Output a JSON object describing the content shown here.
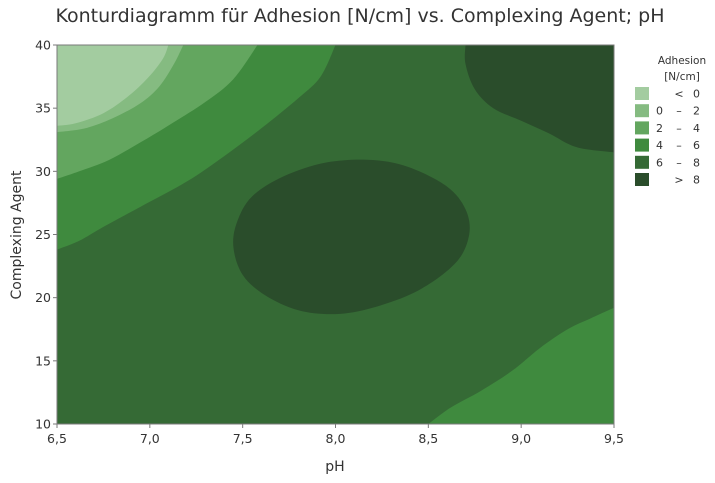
{
  "chart_data": {
    "type": "contour",
    "title": "Konturdiagramm für Adhesion [N/cm] vs. Complexing Agent; pH",
    "xlabel": "pH",
    "ylabel": "Complexing Agent",
    "xlim": [
      6.5,
      9.5
    ],
    "ylim": [
      10,
      40
    ],
    "xticks": [
      "6,5",
      "7,0",
      "7,5",
      "8,0",
      "8,5",
      "9,0",
      "9,5"
    ],
    "yticks": [
      "10",
      "15",
      "20",
      "25",
      "30",
      "35",
      "40"
    ],
    "xtick_values": [
      6.5,
      7.0,
      7.5,
      8.0,
      8.5,
      9.0,
      9.5
    ],
    "ytick_values": [
      10,
      15,
      20,
      25,
      30,
      35,
      40
    ],
    "legend": {
      "title_line1": "Adhesion",
      "title_line2": "[N/cm]",
      "placement": "right",
      "levels": [
        {
          "op": "<",
          "lo": "",
          "hi": "0",
          "color": "#a3cca0"
        },
        {
          "op": "–",
          "lo": "0",
          "hi": "2",
          "color": "#85bb81"
        },
        {
          "op": "–",
          "lo": "2",
          "hi": "4",
          "color": "#63a65f"
        },
        {
          "op": "–",
          "lo": "4",
          "hi": "6",
          "color": "#3f8a3e"
        },
        {
          "op": "–",
          "lo": "6",
          "hi": "8",
          "color": "#356a35"
        },
        {
          "op": ">",
          "lo": "",
          "hi": "8",
          "color": "#2a4d2b"
        }
      ]
    },
    "regions": [
      {
        "band": "4 – 6",
        "color": "#3f8a3e",
        "boundary": [
          [
            6.5,
            23.8
          ],
          [
            6.62,
            24.5
          ],
          [
            6.75,
            25.6
          ],
          [
            6.95,
            27.2
          ],
          [
            7.2,
            29.2
          ],
          [
            7.4,
            31.2
          ],
          [
            7.6,
            33.4
          ],
          [
            7.8,
            35.8
          ],
          [
            7.92,
            37.5
          ],
          [
            8.0,
            40
          ],
          [
            6.5,
            40
          ]
        ]
      },
      {
        "band": "2 – 4",
        "color": "#63a65f",
        "boundary": [
          [
            6.5,
            29.4
          ],
          [
            6.62,
            30.0
          ],
          [
            6.78,
            30.9
          ],
          [
            6.95,
            32.3
          ],
          [
            7.12,
            33.8
          ],
          [
            7.3,
            35.5
          ],
          [
            7.45,
            37.3
          ],
          [
            7.58,
            40
          ],
          [
            6.5,
            40
          ]
        ]
      },
      {
        "band": "0 – 2",
        "color": "#85bb81",
        "boundary": [
          [
            6.5,
            33.1
          ],
          [
            6.65,
            33.4
          ],
          [
            6.8,
            34.2
          ],
          [
            6.95,
            35.4
          ],
          [
            7.05,
            36.7
          ],
          [
            7.13,
            38.5
          ],
          [
            7.18,
            40
          ],
          [
            6.5,
            40
          ]
        ]
      },
      {
        "band": "< 0",
        "color": "#a3cca0",
        "boundary": [
          [
            6.5,
            33.6
          ],
          [
            6.6,
            33.8
          ],
          [
            6.75,
            34.6
          ],
          [
            6.88,
            35.9
          ],
          [
            6.99,
            37.4
          ],
          [
            7.07,
            38.9
          ],
          [
            7.1,
            40
          ],
          [
            6.5,
            40
          ]
        ]
      },
      {
        "band": "> 8",
        "color": "#2a4d2b",
        "boundary": [
          [
            7.5,
            21.8
          ],
          [
            7.62,
            20.2
          ],
          [
            7.8,
            19.0
          ],
          [
            8.0,
            18.7
          ],
          [
            8.2,
            19.2
          ],
          [
            8.45,
            20.6
          ],
          [
            8.65,
            22.8
          ],
          [
            8.72,
            25.0
          ],
          [
            8.7,
            27.0
          ],
          [
            8.6,
            28.8
          ],
          [
            8.4,
            30.3
          ],
          [
            8.2,
            30.9
          ],
          [
            7.95,
            30.7
          ],
          [
            7.72,
            29.6
          ],
          [
            7.55,
            28.0
          ],
          [
            7.47,
            26.0
          ],
          [
            7.45,
            24.0
          ]
        ]
      },
      {
        "band": "> 8",
        "color": "#2a4d2b",
        "boundary": [
          [
            8.7,
            40
          ],
          [
            8.7,
            38.5
          ],
          [
            8.75,
            36.5
          ],
          [
            8.85,
            35.0
          ],
          [
            9.0,
            34.0
          ],
          [
            9.15,
            33.0
          ],
          [
            9.3,
            31.9
          ],
          [
            9.5,
            31.5
          ],
          [
            9.5,
            40
          ]
        ]
      },
      {
        "band": "4 – 6",
        "color": "#3f8a3e",
        "boundary": [
          [
            8.5,
            10
          ],
          [
            8.62,
            11.3
          ],
          [
            8.78,
            12.6
          ],
          [
            8.95,
            14.2
          ],
          [
            9.1,
            16.0
          ],
          [
            9.25,
            17.5
          ],
          [
            9.38,
            18.4
          ],
          [
            9.5,
            19.2
          ],
          [
            9.5,
            10
          ]
        ]
      }
    ]
  }
}
